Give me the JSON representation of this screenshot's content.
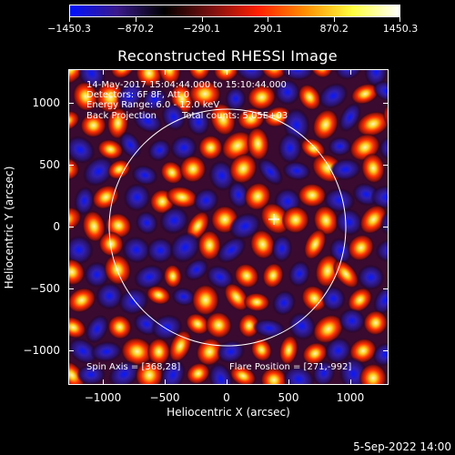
{
  "colorbar": {
    "gradient": [
      "#0010ff",
      "#3a1a8a",
      "#000000",
      "#7a1010",
      "#ff2000",
      "#ff9000",
      "#ffff40",
      "#ffffff"
    ],
    "labels": [
      "−1450.3",
      "−870.2",
      "−290.1",
      "290.1",
      "870.2",
      "1450.3"
    ]
  },
  "title": "Reconstructed RHESSI Image",
  "annotations": {
    "time_range": "14-May-2017 15:04:44.000 to 15:10:44.000",
    "detectors": "Detectors: 6F 8F, Att 0",
    "energy": "Energy Range: 6.0 - 12.0 keV",
    "method": "Back Projection",
    "total_counts": "Total counts: 5.05E+03",
    "spin_axis": "Spin Axis = [368,28]",
    "flare_position": "Flare Position = [271,-992]"
  },
  "axes": {
    "x_title": "Heliocentric X (arcsec)",
    "y_title": "Heliocentric Y (arcsec)",
    "x_ticks": [
      "−1000",
      "−500",
      "0",
      "500",
      "1000"
    ],
    "y_ticks": [
      "1000",
      "500",
      "0",
      "−500",
      "−1000"
    ]
  },
  "footer_date": "5-Sep-2022 14:00"
}
